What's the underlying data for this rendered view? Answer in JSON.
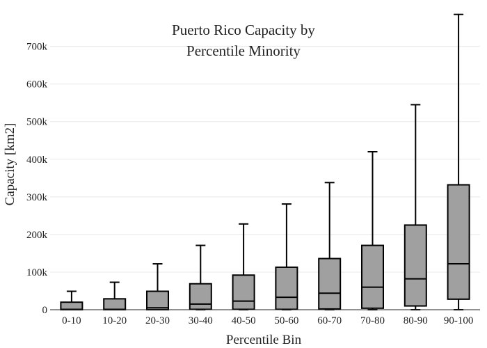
{
  "chart_data": {
    "type": "box",
    "title_lines": [
      "Puerto Rico Capacity by",
      "Percentile Minority"
    ],
    "xlabel": "Percentile Bin",
    "ylabel": "Capacity  [km2]",
    "ylim": [
      0,
      790000
    ],
    "yticks": [
      0,
      100000,
      200000,
      300000,
      400000,
      500000,
      600000,
      700000
    ],
    "ytick_labels": [
      "0",
      "100k",
      "200k",
      "300k",
      "400k",
      "500k",
      "600k",
      "700k"
    ],
    "grid": true,
    "box_color": "#a0a0a0",
    "categories": [
      "0-10",
      "10-20",
      "20-30",
      "30-40",
      "40-50",
      "50-60",
      "60-70",
      "70-80",
      "80-90",
      "90-100"
    ],
    "boxes": [
      {
        "low": 0,
        "q1": 0,
        "median": 1000,
        "q3": 20000,
        "high": 49000
      },
      {
        "low": 0,
        "q1": 0,
        "median": 1000,
        "q3": 29000,
        "high": 73000
      },
      {
        "low": 0,
        "q1": 0,
        "median": 5000,
        "q3": 49000,
        "high": 122000
      },
      {
        "low": 0,
        "q1": 1000,
        "median": 15000,
        "q3": 69000,
        "high": 171000
      },
      {
        "low": 0,
        "q1": 1000,
        "median": 23000,
        "q3": 92000,
        "high": 228000
      },
      {
        "low": 0,
        "q1": 1000,
        "median": 33000,
        "q3": 113000,
        "high": 281000
      },
      {
        "low": 0,
        "q1": 2000,
        "median": 44000,
        "q3": 136000,
        "high": 338000
      },
      {
        "low": 0,
        "q1": 4000,
        "median": 60000,
        "q3": 171000,
        "high": 420000
      },
      {
        "low": 0,
        "q1": 10000,
        "median": 82000,
        "q3": 225000,
        "high": 545000
      },
      {
        "low": 0,
        "q1": 28000,
        "median": 122000,
        "q3": 332000,
        "high": 785000
      }
    ]
  }
}
